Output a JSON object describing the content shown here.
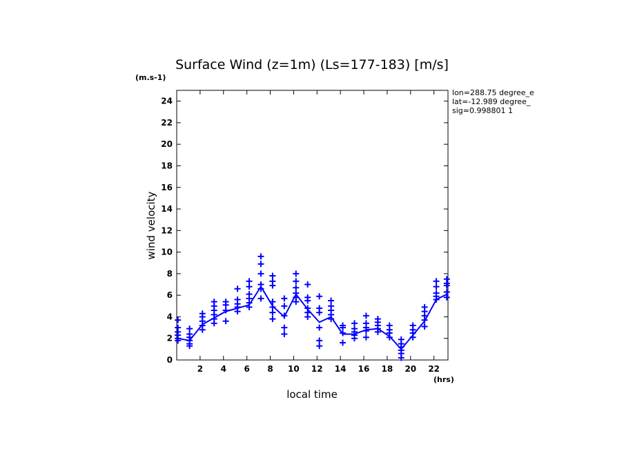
{
  "chart_data": {
    "type": "scatter",
    "title": "Surface Wind (z=1m) (Ls=177-183) [m/s]",
    "yunit": "(m.s-1)",
    "xunit": "(hrs)",
    "xlabel": "local time",
    "ylabel": "wind velocity",
    "xlim": [
      0,
      23.2
    ],
    "ylim": [
      0,
      25
    ],
    "xticks": [
      2,
      4,
      6,
      8,
      10,
      12,
      14,
      16,
      18,
      20,
      22
    ],
    "yticks": [
      0,
      2,
      4,
      6,
      8,
      10,
      12,
      14,
      16,
      18,
      20,
      22,
      24
    ],
    "color": "#0000ff",
    "annotations": [
      "lon=288.75 degree_e",
      "lat=-12.989 degree_",
      "sig=0.998801 1"
    ],
    "series": [
      {
        "name": "mean",
        "style": "line",
        "x": [
          0.1,
          1.1,
          2.2,
          3.2,
          4.2,
          5.2,
          6.2,
          7.2,
          8.2,
          9.2,
          10.2,
          11.2,
          12.2,
          13.2,
          14.2,
          15.2,
          16.2,
          17.2,
          18.2,
          19.2,
          20.2,
          21.2,
          22.2,
          23.1
        ],
        "y": [
          2.0,
          1.8,
          3.3,
          3.9,
          4.5,
          4.8,
          5.1,
          6.8,
          5.0,
          4.0,
          6.1,
          4.7,
          3.5,
          4.0,
          2.4,
          2.4,
          2.8,
          2.9,
          2.2,
          1.0,
          2.3,
          3.6,
          5.6,
          6.1
        ]
      },
      {
        "name": "samples",
        "style": "plus",
        "points": [
          [
            0.1,
            3.7
          ],
          [
            0.1,
            3.0
          ],
          [
            0.1,
            2.6
          ],
          [
            0.1,
            2.3
          ],
          [
            0.1,
            2.0
          ],
          [
            0.1,
            1.8
          ],
          [
            1.1,
            2.9
          ],
          [
            1.1,
            2.4
          ],
          [
            1.1,
            2.1
          ],
          [
            1.1,
            1.8
          ],
          [
            1.1,
            1.5
          ],
          [
            1.1,
            1.3
          ],
          [
            2.2,
            4.3
          ],
          [
            2.2,
            4.0
          ],
          [
            2.2,
            3.6
          ],
          [
            2.2,
            3.2
          ],
          [
            2.2,
            2.8
          ],
          [
            3.2,
            5.4
          ],
          [
            3.2,
            5.0
          ],
          [
            3.2,
            4.6
          ],
          [
            3.2,
            4.2
          ],
          [
            3.2,
            3.8
          ],
          [
            3.2,
            3.4
          ],
          [
            4.2,
            5.4
          ],
          [
            4.2,
            5.1
          ],
          [
            4.2,
            4.6
          ],
          [
            4.2,
            3.6
          ],
          [
            5.2,
            6.6
          ],
          [
            5.2,
            5.6
          ],
          [
            5.2,
            5.2
          ],
          [
            5.2,
            4.9
          ],
          [
            5.2,
            4.5
          ],
          [
            6.2,
            7.3
          ],
          [
            6.2,
            6.8
          ],
          [
            6.2,
            6.1
          ],
          [
            6.2,
            5.7
          ],
          [
            6.2,
            5.3
          ],
          [
            6.2,
            4.9
          ],
          [
            7.2,
            9.6
          ],
          [
            7.2,
            8.9
          ],
          [
            7.2,
            8.0
          ],
          [
            7.2,
            7.0
          ],
          [
            7.2,
            6.6
          ],
          [
            7.2,
            5.7
          ],
          [
            8.2,
            7.8
          ],
          [
            8.2,
            7.3
          ],
          [
            8.2,
            6.9
          ],
          [
            8.2,
            5.4
          ],
          [
            8.2,
            4.9
          ],
          [
            8.2,
            4.4
          ],
          [
            8.2,
            3.8
          ],
          [
            9.2,
            5.7
          ],
          [
            9.2,
            5.0
          ],
          [
            9.2,
            4.1
          ],
          [
            9.2,
            3.0
          ],
          [
            9.2,
            2.4
          ],
          [
            10.2,
            8.0
          ],
          [
            10.2,
            7.3
          ],
          [
            10.2,
            6.7
          ],
          [
            10.2,
            6.2
          ],
          [
            10.2,
            5.8
          ],
          [
            10.2,
            5.4
          ],
          [
            11.2,
            7.0
          ],
          [
            11.2,
            5.8
          ],
          [
            11.2,
            5.5
          ],
          [
            11.2,
            4.8
          ],
          [
            11.2,
            4.4
          ],
          [
            11.2,
            4.0
          ],
          [
            12.2,
            5.9
          ],
          [
            12.2,
            4.8
          ],
          [
            12.2,
            4.4
          ],
          [
            12.2,
            3.0
          ],
          [
            12.2,
            1.8
          ],
          [
            12.2,
            1.3
          ],
          [
            13.2,
            5.5
          ],
          [
            13.2,
            5.0
          ],
          [
            13.2,
            4.6
          ],
          [
            13.2,
            4.2
          ],
          [
            13.2,
            3.8
          ],
          [
            14.2,
            3.2
          ],
          [
            14.2,
            3.0
          ],
          [
            14.2,
            2.5
          ],
          [
            14.2,
            1.6
          ],
          [
            15.2,
            3.4
          ],
          [
            15.2,
            2.9
          ],
          [
            15.2,
            2.6
          ],
          [
            15.2,
            2.3
          ],
          [
            15.2,
            2.0
          ],
          [
            16.2,
            4.1
          ],
          [
            16.2,
            3.4
          ],
          [
            16.2,
            3.0
          ],
          [
            16.2,
            2.7
          ],
          [
            16.2,
            2.1
          ],
          [
            17.2,
            3.8
          ],
          [
            17.2,
            3.5
          ],
          [
            17.2,
            3.2
          ],
          [
            17.2,
            2.9
          ],
          [
            17.2,
            2.6
          ],
          [
            18.2,
            3.2
          ],
          [
            18.2,
            2.8
          ],
          [
            18.2,
            2.5
          ],
          [
            18.2,
            2.1
          ],
          [
            19.2,
            1.9
          ],
          [
            19.2,
            1.5
          ],
          [
            19.2,
            1.2
          ],
          [
            19.2,
            0.9
          ],
          [
            19.2,
            0.6
          ],
          [
            19.2,
            0.2
          ],
          [
            20.2,
            3.2
          ],
          [
            20.2,
            2.8
          ],
          [
            20.2,
            2.5
          ],
          [
            20.2,
            2.1
          ],
          [
            21.2,
            4.9
          ],
          [
            21.2,
            4.5
          ],
          [
            21.2,
            4.1
          ],
          [
            21.2,
            3.7
          ],
          [
            21.2,
            3.1
          ],
          [
            22.2,
            7.3
          ],
          [
            22.2,
            6.8
          ],
          [
            22.2,
            6.2
          ],
          [
            22.2,
            5.9
          ],
          [
            22.2,
            5.6
          ],
          [
            23.1,
            7.5
          ],
          [
            23.1,
            7.1
          ],
          [
            23.1,
            6.9
          ],
          [
            23.1,
            6.3
          ],
          [
            23.1,
            5.8
          ]
        ]
      }
    ]
  }
}
